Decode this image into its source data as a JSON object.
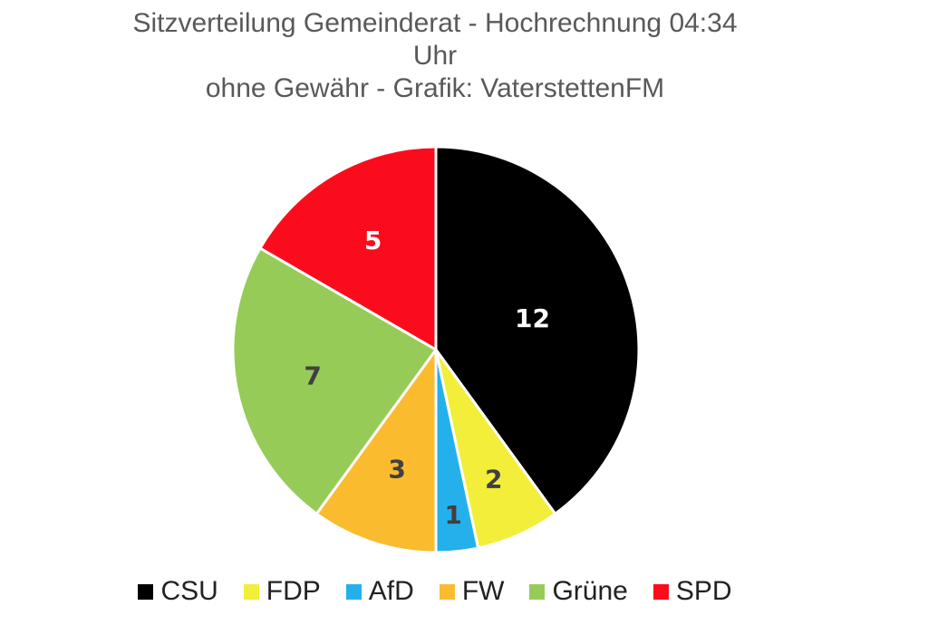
{
  "chart_data": {
    "type": "pie",
    "title": "Sitzverteilung Gemeinderat - Hochrechnung 04:34",
    "title_line2": "Uhr",
    "subtitle": "ohne Gewähr - Grafik: VaterstettenFM",
    "slices": [
      {
        "label": "CSU",
        "value": 12,
        "color": "#000000",
        "label_color": "#ffffff"
      },
      {
        "label": "FDP",
        "value": 2,
        "color": "#f2ee3a",
        "label_color": "#404040"
      },
      {
        "label": "AfD",
        "value": 1,
        "color": "#25b0ec",
        "label_color": "#404040"
      },
      {
        "label": "FW",
        "value": 3,
        "color": "#fbbb2f",
        "label_color": "#404040"
      },
      {
        "label": "Grüne",
        "value": 7,
        "color": "#97cb58",
        "label_color": "#404040"
      },
      {
        "label": "SPD",
        "value": 5,
        "color": "#fb0c1c",
        "label_color": "#ffffff"
      }
    ],
    "start_angle": "12 o'clock, clockwise",
    "legend_position": "bottom"
  }
}
